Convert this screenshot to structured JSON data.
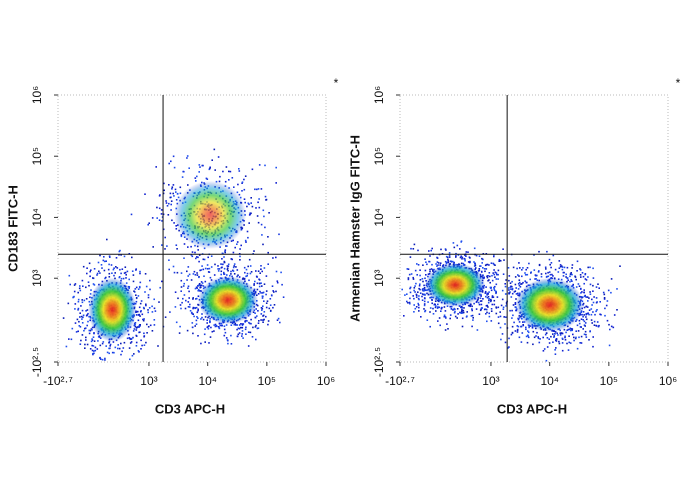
{
  "chart_data": [
    {
      "type": "scatter",
      "scale": "biexponential",
      "x_label": "CD3 APC-H",
      "y_label": "CD183 FITC-H",
      "annotation": "*",
      "xlim": [
        -501,
        1000000
      ],
      "ylim": [
        -316,
        1000000
      ],
      "xticks": [
        {
          "value": -501,
          "label": "-10²·⁷"
        },
        {
          "value": 1000,
          "label": "10³"
        },
        {
          "value": 10000,
          "label": "10⁴"
        },
        {
          "value": 100000,
          "label": "10⁵"
        },
        {
          "value": 1000000,
          "label": "10⁶"
        }
      ],
      "yticks": [
        {
          "value": -316,
          "label": "-10²·⁵"
        },
        {
          "value": 1000,
          "label": "10³"
        },
        {
          "value": 10000,
          "label": "10⁴"
        },
        {
          "value": 100000,
          "label": "10⁵"
        },
        {
          "value": 1000000,
          "label": "10⁶"
        }
      ],
      "gate_x": 1750,
      "gate_y": 2500,
      "series": [
        {
          "x": [
            180,
            22000,
            11000
          ],
          "values": [
            260,
            410,
            11000
          ]
        }
      ]
    },
    {
      "type": "scatter",
      "scale": "biexponential",
      "x_label": "CD3 APC-H",
      "y_label": "Armenian Hamster IgG FITC-H",
      "annotation": "*",
      "xlim": [
        -501,
        1000000
      ],
      "ylim": [
        -316,
        1000000
      ],
      "xticks": [
        {
          "value": -501,
          "label": "-10²·⁷"
        },
        {
          "value": 1000,
          "label": "10³"
        },
        {
          "value": 10000,
          "label": "10⁴"
        },
        {
          "value": 100000,
          "label": "10⁵"
        },
        {
          "value": 1000000,
          "label": "10⁶"
        }
      ],
      "yticks": [
        {
          "value": -316,
          "label": "-10²·⁵"
        },
        {
          "value": 1000,
          "label": "10³"
        },
        {
          "value": 10000,
          "label": "10⁴"
        },
        {
          "value": 100000,
          "label": "10⁵"
        },
        {
          "value": 1000000,
          "label": "10⁶"
        }
      ],
      "gate_x": 1900,
      "gate_y": 2500,
      "series": [
        {
          "x": [
            190,
            10000
          ],
          "values": [
            770,
            330
          ]
        }
      ]
    }
  ]
}
